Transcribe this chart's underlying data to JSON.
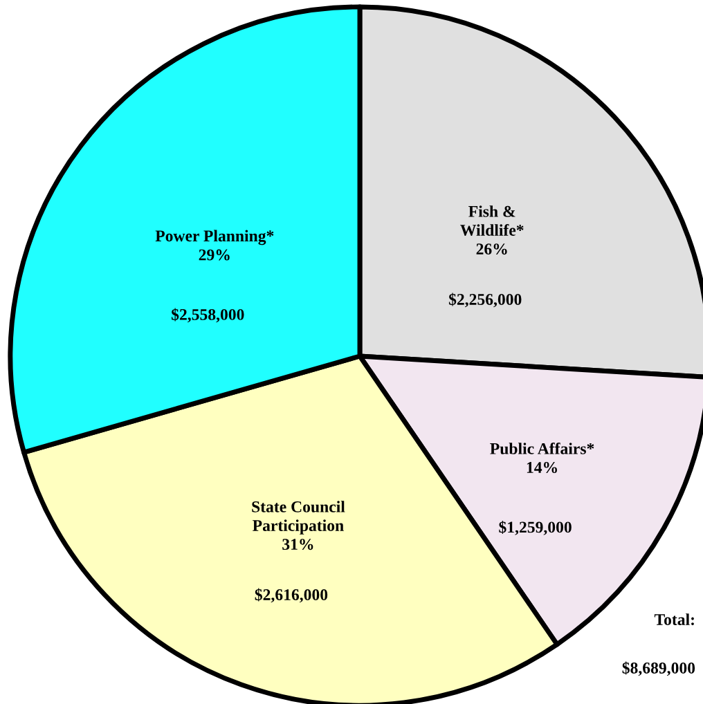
{
  "chart_data": {
    "type": "pie",
    "categories": [
      "Fish & Wildlife*",
      "Public Affairs*",
      "State Council Participation",
      "Power Planning*"
    ],
    "values": [
      2256000,
      1259000,
      2616000,
      2558000
    ],
    "colors": [
      "#e0e0e0",
      "#f2e6f0",
      "#ffffc0",
      "#20ffff"
    ],
    "value_labels": [
      "$2,256,000",
      "$1,259,000",
      "$2,616,000",
      "$2,558,000"
    ],
    "annotations": [
      "26%",
      "14%",
      "31%",
      "29%",
      "Total:",
      "$8,689,000"
    ]
  }
}
